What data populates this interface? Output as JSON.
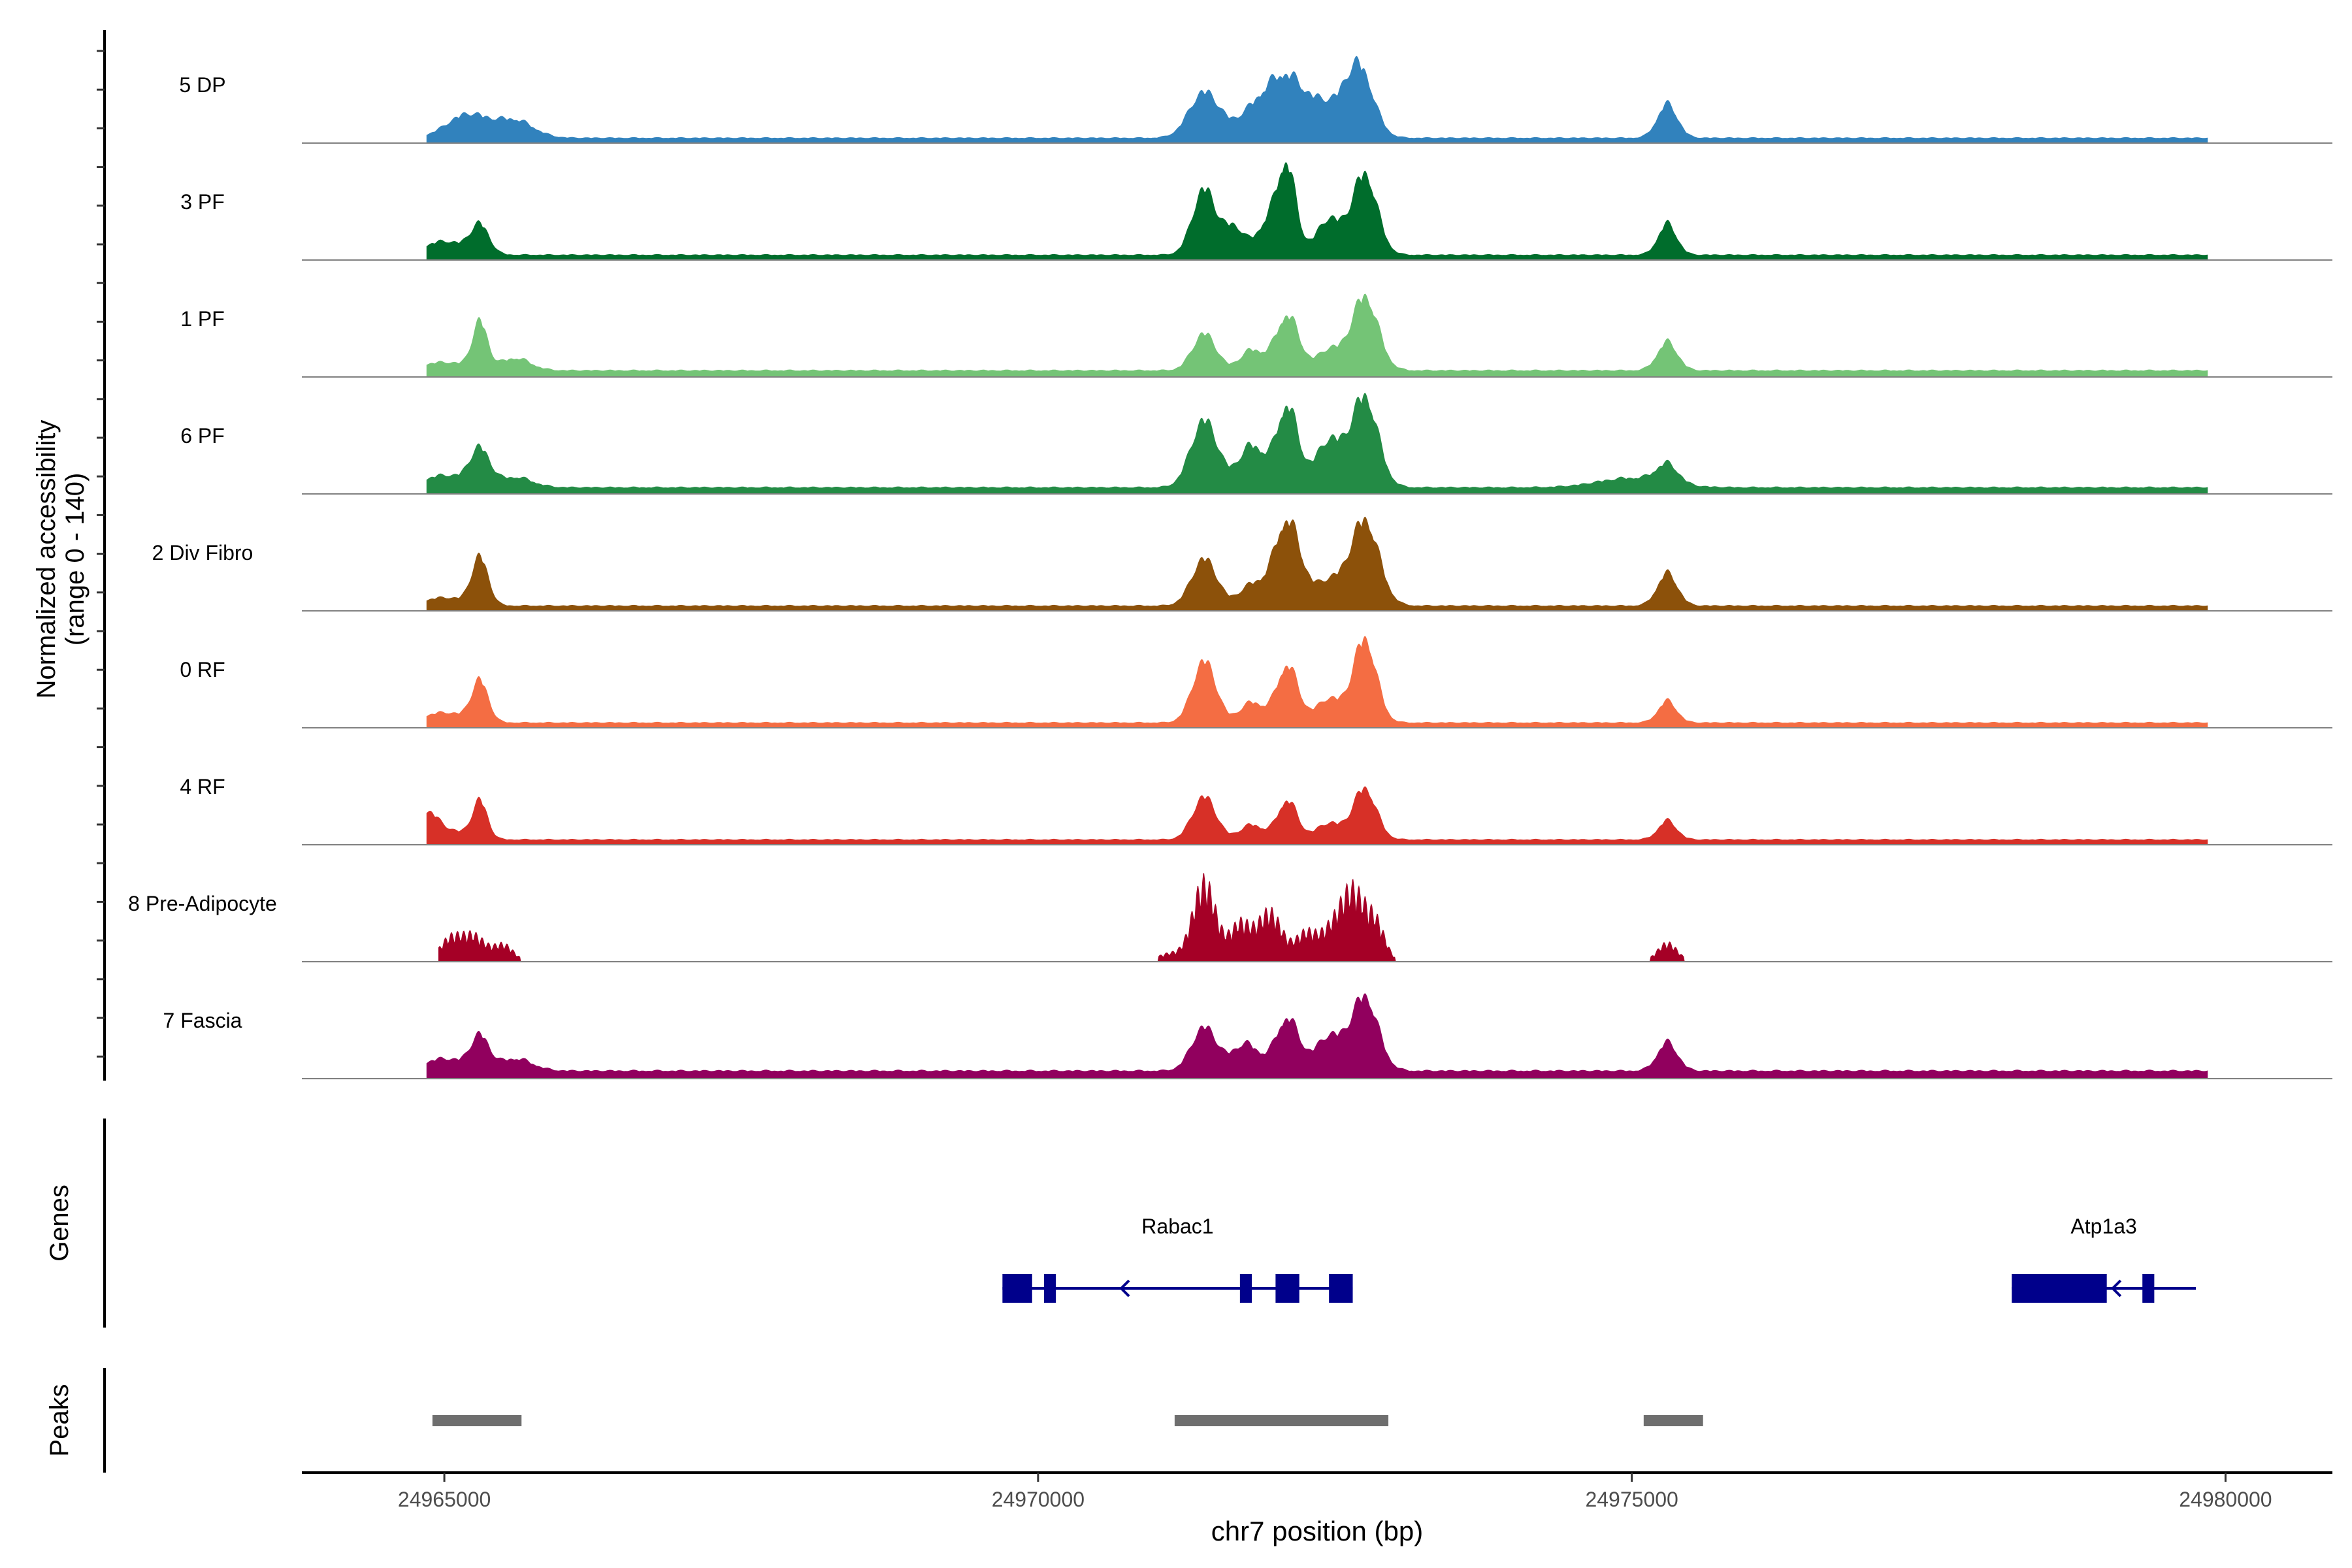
{
  "chart_data": {
    "type": "area",
    "title": "",
    "chromosome": "chr7",
    "xlabel": "chr7 position (bp)",
    "ylabel_line1": "Normalized accessibility",
    "ylabel_line2": "(range 0 - 140)",
    "xlim": [
      24963800,
      24980900
    ],
    "ylim": [
      0,
      140
    ],
    "x_ticks": [
      24965000,
      24970000,
      24975000,
      24980000
    ],
    "x_tick_labels": [
      "24965000",
      "24970000",
      "24975000",
      "24980000"
    ],
    "tracks": [
      {
        "name": "5 DP",
        "color": "#3182BD",
        "style": "smooth",
        "baseline": 8,
        "peaks": [
          [
            24965200,
            35,
            250
          ],
          [
            24965600,
            25,
            220
          ],
          [
            24971400,
            68,
            180
          ],
          [
            24971850,
            45,
            220
          ],
          [
            24972100,
            78,
            200
          ],
          [
            24972400,
            45,
            200
          ],
          [
            24972700,
            106,
            170
          ],
          [
            24975300,
            50,
            120
          ]
        ]
      },
      {
        "name": "3 PF",
        "color": "#006D2C",
        "style": "smooth",
        "baseline": 8,
        "peaks": [
          [
            24965000,
            20,
            250
          ],
          [
            24965300,
            42,
            110
          ],
          [
            24971400,
            98,
            140
          ],
          [
            24971650,
            40,
            120
          ],
          [
            24971950,
            50,
            150
          ],
          [
            24972100,
            118,
            110
          ],
          [
            24972450,
            52,
            150
          ],
          [
            24972750,
            120,
            150
          ],
          [
            24975300,
            46,
            110
          ]
        ]
      },
      {
        "name": "1 PF",
        "color": "#74C476",
        "style": "smooth",
        "baseline": 10,
        "peaks": [
          [
            24965000,
            12,
            300
          ],
          [
            24965300,
            68,
            90
          ],
          [
            24965600,
            18,
            180
          ],
          [
            24971400,
            55,
            140
          ],
          [
            24971800,
            30,
            140
          ],
          [
            24972100,
            82,
            140
          ],
          [
            24972450,
            30,
            140
          ],
          [
            24972750,
            110,
            160
          ],
          [
            24975300,
            42,
            120
          ]
        ]
      },
      {
        "name": "6 PF",
        "color": "#238B45",
        "style": "smooth",
        "baseline": 10,
        "peaks": [
          [
            24965000,
            18,
            250
          ],
          [
            24965300,
            54,
            120
          ],
          [
            24965600,
            15,
            200
          ],
          [
            24971400,
            100,
            160
          ],
          [
            24971800,
            62,
            160
          ],
          [
            24972100,
            120,
            130
          ],
          [
            24972450,
            68,
            160
          ],
          [
            24972750,
            134,
            160
          ],
          [
            24975000,
            14,
            400
          ],
          [
            24975300,
            28,
            130
          ]
        ]
      },
      {
        "name": "2 Div Fibro",
        "color": "#8C510A",
        "style": "smooth",
        "baseline": 8,
        "peaks": [
          [
            24965000,
            12,
            250
          ],
          [
            24965300,
            70,
            100
          ],
          [
            24971400,
            70,
            150
          ],
          [
            24971800,
            30,
            150
          ],
          [
            24972100,
            127,
            160
          ],
          [
            24972450,
            35,
            160
          ],
          [
            24972750,
            127,
            170
          ],
          [
            24975300,
            48,
            120
          ]
        ]
      },
      {
        "name": "0 RF",
        "color": "#F46D43",
        "style": "smooth",
        "baseline": 8,
        "peaks": [
          [
            24965000,
            15,
            250
          ],
          [
            24965300,
            60,
            100
          ],
          [
            24971400,
            92,
            140
          ],
          [
            24971800,
            30,
            140
          ],
          [
            24972100,
            85,
            130
          ],
          [
            24972450,
            35,
            150
          ],
          [
            24972750,
            124,
            140
          ],
          [
            24975300,
            32,
            110
          ]
        ]
      },
      {
        "name": "4 RF",
        "color": "#D73027",
        "style": "smooth",
        "baseline": 8,
        "peaks": [
          [
            24964850,
            32,
            120
          ],
          [
            24965000,
            15,
            250
          ],
          [
            24965300,
            55,
            90
          ],
          [
            24971400,
            64,
            140
          ],
          [
            24971800,
            22,
            140
          ],
          [
            24972100,
            58,
            120
          ],
          [
            24972450,
            24,
            150
          ],
          [
            24972750,
            76,
            140
          ],
          [
            24975300,
            28,
            110
          ]
        ]
      },
      {
        "name": "8 Pre-Adipocyte",
        "color": "#A50026",
        "style": "jagged",
        "baseline": 0,
        "peaks": [
          [
            24965050,
            34,
            130
          ],
          [
            24965250,
            38,
            140
          ],
          [
            24965500,
            25,
            120
          ],
          [
            24971100,
            12,
            140
          ],
          [
            24971400,
            120,
            140
          ],
          [
            24971700,
            55,
            120
          ],
          [
            24971950,
            75,
            150
          ],
          [
            24972250,
            40,
            120
          ],
          [
            24972450,
            38,
            140
          ],
          [
            24972650,
            105,
            150
          ],
          [
            24972850,
            50,
            110
          ],
          [
            24975300,
            28,
            120
          ]
        ]
      },
      {
        "name": "7 Fascia",
        "color": "#91005E",
        "style": "smooth",
        "baseline": 12,
        "peaks": [
          [
            24965000,
            18,
            250
          ],
          [
            24965300,
            48,
            110
          ],
          [
            24965600,
            18,
            200
          ],
          [
            24971400,
            65,
            150
          ],
          [
            24971750,
            40,
            160
          ],
          [
            24972100,
            78,
            140
          ],
          [
            24972450,
            50,
            160
          ],
          [
            24972750,
            110,
            160
          ],
          [
            24975300,
            42,
            120
          ]
        ]
      }
    ],
    "genes": [
      {
        "name": "Rabac1",
        "strand": "-",
        "start": 24969700,
        "end": 24972650,
        "exons": [
          [
            24969700,
            24969950
          ],
          [
            24970050,
            24970150
          ],
          [
            24971700,
            24971800
          ],
          [
            24972000,
            24972200
          ],
          [
            24972450,
            24972650
          ]
        ]
      },
      {
        "name": "Atp1a3",
        "strand": "-",
        "start": 24978200,
        "end": 24979750,
        "exons": [
          [
            24978200,
            24979000
          ],
          [
            24979300,
            24979400
          ]
        ]
      }
    ],
    "peaks": [
      [
        24964900,
        24965650
      ],
      [
        24971150,
        24972950
      ],
      [
        24975100,
        24975600
      ]
    ]
  },
  "panels": {
    "genes_label": "Genes",
    "peaks_label": "Peaks"
  },
  "colors": {
    "gene_color": "#00008B",
    "peak_color": "#6E6E6E",
    "track_axis": "#808080"
  }
}
